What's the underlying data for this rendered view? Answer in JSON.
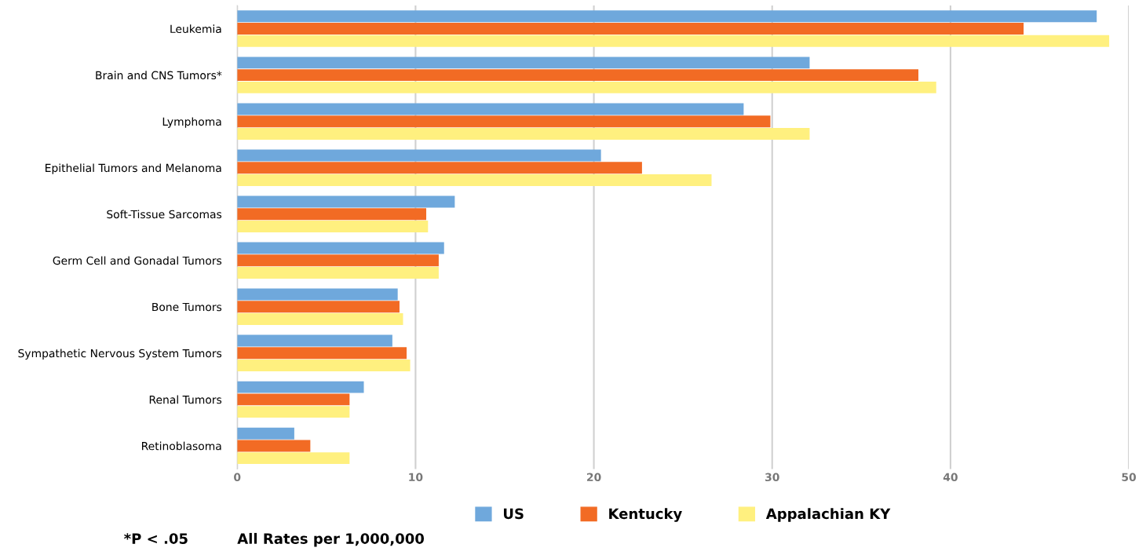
{
  "chart_data": {
    "type": "bar",
    "orientation": "horizontal",
    "categories": [
      "Leukemia",
      "Brain and CNS Tumors*",
      "Lymphoma",
      "Epithelial Tumors and Melanoma",
      "Soft-Tissue Sarcomas",
      "Germ Cell and Gonadal Tumors",
      "Bone Tumors",
      "Sympathetic Nervous System Tumors",
      "Renal Tumors",
      "Retinoblasoma"
    ],
    "series": [
      {
        "name": "US",
        "color": "#6fa8dc",
        "values": [
          48.2,
          32.1,
          28.4,
          20.4,
          12.2,
          11.6,
          9.0,
          8.7,
          7.1,
          3.2
        ]
      },
      {
        "name": "Kentucky",
        "color": "#f26b24",
        "values": [
          44.1,
          38.2,
          29.9,
          22.7,
          10.6,
          11.3,
          9.1,
          9.5,
          6.3,
          4.1
        ]
      },
      {
        "name": "Appalachian KY",
        "color": "#fff07f",
        "values": [
          48.9,
          39.2,
          32.1,
          26.6,
          10.7,
          11.3,
          9.3,
          9.7,
          6.3,
          6.3
        ]
      }
    ],
    "xlim": [
      0,
      50
    ],
    "xticks": [
      0,
      10,
      20,
      30,
      40,
      50
    ],
    "grid": "x",
    "legend": "bottom",
    "annotations": [
      "*P < .05",
      "All Rates per 1,000,000"
    ]
  }
}
